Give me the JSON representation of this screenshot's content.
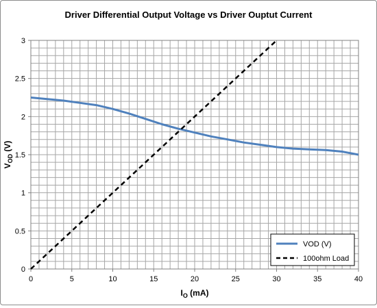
{
  "chart_data": {
    "type": "line",
    "title": "Driver Differential Output Voltage vs Driver Ouptut Current",
    "xlabel": {
      "main": "I",
      "sub": "O",
      "rest": " (mA)"
    },
    "ylabel": {
      "main": "V",
      "sub": "OD",
      "rest": " (V)"
    },
    "xlim": [
      0,
      40
    ],
    "ylim": [
      0,
      3
    ],
    "xticks": [
      0,
      5,
      10,
      15,
      20,
      25,
      30,
      35,
      40
    ],
    "yticks": [
      0,
      0.5,
      1,
      1.5,
      2,
      2.5,
      3
    ],
    "xtick_labels": [
      "0",
      "5",
      "10",
      "15",
      "20",
      "25",
      "30",
      "35",
      "40"
    ],
    "ytick_labels": [
      "0",
      "0.5",
      "1",
      "1.5",
      "2",
      "2.5",
      "3"
    ],
    "grid": true,
    "legend_position": "bottom-right",
    "series": [
      {
        "name": "VOD (V)",
        "color": "#4f81bd",
        "style": "solid",
        "x": [
          0,
          2,
          4,
          6,
          8,
          10,
          12,
          14,
          16,
          18,
          20,
          22,
          24,
          26,
          28,
          30,
          32,
          34,
          36,
          38,
          40
        ],
        "y": [
          2.25,
          2.23,
          2.21,
          2.18,
          2.15,
          2.1,
          2.04,
          1.97,
          1.9,
          1.84,
          1.79,
          1.74,
          1.7,
          1.66,
          1.63,
          1.6,
          1.58,
          1.57,
          1.56,
          1.54,
          1.5
        ]
      },
      {
        "name": "100ohm Load",
        "color": "#000000",
        "style": "dashed",
        "x": [
          0,
          30
        ],
        "y": [
          0,
          3
        ]
      }
    ]
  }
}
